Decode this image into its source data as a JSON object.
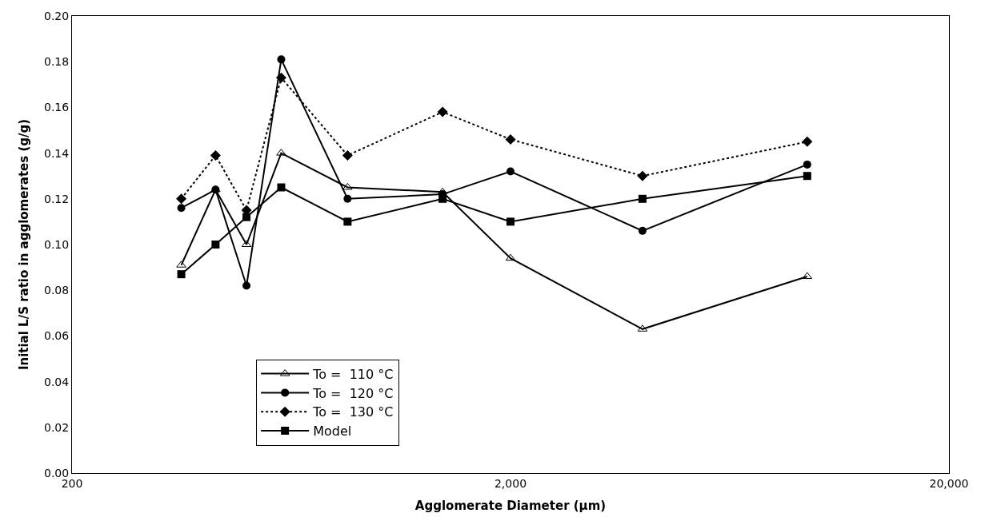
{
  "chart_data": {
    "type": "line",
    "xlabel": "Agglomerate Diameter (µm)",
    "ylabel": "Initial L/S ratio in agglomerates (g/g)",
    "x": [
      355,
      425,
      500,
      600,
      850,
      1400,
      2000,
      4000,
      9500
    ],
    "log": "x",
    "xlim": [
      200,
      20000
    ],
    "xticks": [
      200,
      {
        "value": 2000,
        "label": "2,000"
      },
      {
        "value": 20000,
        "label": "20,000"
      }
    ],
    "ylim": [
      0,
      0.2
    ],
    "yticks": [
      {
        "value": 0,
        "label": "0.00"
      },
      {
        "value": 0.02,
        "label": "0.02"
      },
      {
        "value": 0.04,
        "label": "0.04"
      },
      {
        "value": 0.06,
        "label": "0.06"
      },
      {
        "value": 0.08,
        "label": "0.08"
      },
      {
        "value": 0.1,
        "label": "0.10"
      },
      {
        "value": 0.12,
        "label": "0.12"
      },
      {
        "value": 0.14,
        "label": "0.14"
      },
      {
        "value": 0.16,
        "label": "0.16"
      },
      {
        "value": 0.18,
        "label": "0.18"
      },
      {
        "value": 0.2,
        "label": "0.20"
      }
    ],
    "legend": "bottom left",
    "series": [
      {
        "name": "To =  110 °C",
        "color": "#000000",
        "marker": "triangle",
        "line_style": "solid",
        "values": [
          0.091,
          0.124,
          0.1,
          0.14,
          0.125,
          0.123,
          0.094,
          0.063,
          0.086
        ]
      },
      {
        "name": "To =  120 °C",
        "color": "#000000",
        "marker": "circle",
        "line_style": "solid",
        "values": [
          0.116,
          0.124,
          0.082,
          0.181,
          0.12,
          0.122,
          0.132,
          0.106,
          0.135
        ]
      },
      {
        "name": "To =  130 °C",
        "color": "#000000",
        "marker": "diamond",
        "line_style": "dotted",
        "values": [
          0.12,
          0.139,
          0.115,
          0.173,
          0.139,
          0.158,
          0.146,
          0.13,
          0.145
        ]
      },
      {
        "name": "Model",
        "color": "#000000",
        "marker": "square",
        "line_style": "solid",
        "values": [
          0.087,
          0.1,
          0.112,
          0.125,
          0.11,
          0.12,
          0.11,
          0.12,
          0.13
        ]
      }
    ]
  }
}
